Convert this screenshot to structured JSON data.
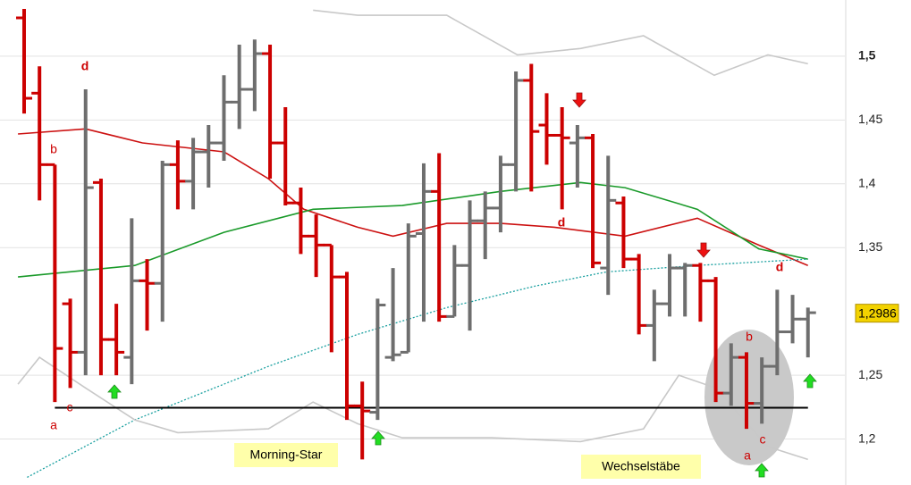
{
  "chart_data": {
    "type": "ohlc",
    "xlim": [
      -1.57,
      53.4
    ],
    "ylim": [
      1.164,
      1.544
    ],
    "yticks": [
      {
        "value": 1.2,
        "label": "1,2"
      },
      {
        "value": 1.25,
        "label": "1,25"
      },
      {
        "value": 1.35,
        "label": "1,35"
      },
      {
        "value": 1.4,
        "label": "1,4"
      },
      {
        "value": 1.45,
        "label": "1,45"
      },
      {
        "value": 1.5,
        "label": "1,5"
      }
    ],
    "grid": true,
    "up_color": "#6e6e6e",
    "down_color": "#cc0000",
    "open": [
      1.53,
      1.471,
      1.415,
      1.306,
      1.268,
      1.401,
      1.278,
      1.264,
      1.324,
      1.322,
      1.415,
      1.402,
      1.425,
      1.432,
      1.464,
      1.474,
      1.502,
      1.432,
      1.385,
      1.359,
      1.352,
      1.327,
      1.226,
      1.221,
      1.264,
      1.268,
      1.361,
      1.394,
      1.296,
      1.336,
      1.371,
      1.381,
      1.415,
      1.481,
      1.446,
      1.438,
      1.432,
      1.436,
      1.334,
      1.385,
      1.341,
      1.289,
      1.306,
      1.334,
      1.336,
      1.324,
      1.236,
      1.264,
      1.228,
      1.257,
      1.284,
      1.294
    ],
    "high": [
      1.537,
      1.492,
      1.415,
      1.31,
      1.474,
      1.404,
      1.306,
      1.373,
      1.341,
      1.418,
      1.434,
      1.436,
      1.446,
      1.485,
      1.509,
      1.513,
      1.509,
      1.46,
      1.397,
      1.376,
      1.352,
      1.331,
      1.245,
      1.31,
      1.334,
      1.369,
      1.416,
      1.424,
      1.352,
      1.387,
      1.394,
      1.422,
      1.488,
      1.494,
      1.471,
      1.46,
      1.446,
      1.439,
      1.422,
      1.39,
      1.345,
      1.317,
      1.345,
      1.338,
      1.338,
      1.327,
      1.275,
      1.268,
      1.264,
      1.317,
      1.313,
      1.303
    ],
    "low": [
      1.455,
      1.387,
      1.229,
      1.24,
      1.25,
      1.25,
      1.25,
      1.243,
      1.285,
      1.292,
      1.38,
      1.38,
      1.397,
      1.418,
      1.443,
      1.457,
      1.404,
      1.383,
      1.345,
      1.327,
      1.268,
      1.215,
      1.184,
      1.215,
      1.261,
      1.268,
      1.292,
      1.292,
      1.296,
      1.285,
      1.341,
      1.362,
      1.394,
      1.394,
      1.415,
      1.38,
      1.397,
      1.334,
      1.313,
      1.334,
      1.282,
      1.261,
      1.296,
      1.296,
      1.292,
      1.229,
      1.226,
      1.208,
      1.212,
      1.25,
      1.275,
      1.264
    ],
    "close": [
      1.467,
      1.415,
      1.271,
      1.268,
      1.397,
      1.278,
      1.268,
      1.324,
      1.322,
      1.415,
      1.402,
      1.425,
      1.432,
      1.464,
      1.474,
      1.502,
      1.432,
      1.385,
      1.359,
      1.352,
      1.327,
      1.226,
      1.222,
      1.305,
      1.266,
      1.359,
      1.394,
      1.296,
      1.336,
      1.371,
      1.381,
      1.415,
      1.481,
      1.441,
      1.438,
      1.436,
      1.436,
      1.338,
      1.387,
      1.341,
      1.289,
      1.306,
      1.334,
      1.336,
      1.324,
      1.236,
      1.264,
      1.228,
      1.257,
      1.284,
      1.294,
      1.299
    ],
    "lines": [
      {
        "color": "#cc1111",
        "dashed": false,
        "x": [
          -0.4,
          4,
          7.7,
          13,
          15.9,
          18.2,
          21.7,
          24,
          27.5,
          31,
          34.5,
          39.1,
          43.8,
          47.8,
          51
        ],
        "values": [
          1.439,
          1.443,
          1.432,
          1.425,
          1.404,
          1.38,
          1.366,
          1.359,
          1.369,
          1.369,
          1.366,
          1.359,
          1.373,
          1.352,
          1.336
        ]
      },
      {
        "color": "#1a9a2a",
        "dashed": false,
        "x": [
          -0.4,
          7.2,
          13,
          18.8,
          24.6,
          31,
          36.2,
          39.1,
          43.8,
          47.8,
          51
        ],
        "values": [
          1.327,
          1.336,
          1.362,
          1.38,
          1.383,
          1.394,
          1.401,
          1.397,
          1.38,
          1.349,
          1.341
        ]
      },
      {
        "color": "#1aa0a0",
        "dashed": true,
        "x": [
          0.2,
          7.2,
          15.9,
          21.7,
          27.5,
          33.3,
          37.9,
          43.8,
          51
        ],
        "values": [
          1.17,
          1.215,
          1.257,
          1.282,
          1.303,
          1.32,
          1.331,
          1.336,
          1.341
        ]
      },
      {
        "color": "#c8c8c8",
        "dashed": false,
        "x": [
          18.8,
          21.7,
          27.5,
          32.1,
          36.2,
          40.3,
          44.9,
          48.4,
          51
        ],
        "values": [
          1.536,
          1.532,
          1.532,
          1.501,
          1.506,
          1.516,
          1.485,
          1.501,
          1.494
        ]
      },
      {
        "color": "#c8c8c8",
        "dashed": false,
        "x": [
          -0.4,
          1.0,
          4,
          7.2,
          10,
          15.9,
          18.8,
          21.7,
          24.6,
          30.4,
          36.2,
          40.3,
          42.6,
          45,
          48.4,
          51
        ],
        "values": [
          1.243,
          1.264,
          1.24,
          1.215,
          1.205,
          1.208,
          1.229,
          1.212,
          1.201,
          1.201,
          1.198,
          1.208,
          1.25,
          1.24,
          1.194,
          1.184
        ]
      }
    ],
    "support_level": 1.2245,
    "support_range": [
      2,
      51
    ],
    "last_value": {
      "value": 1.2986,
      "label": "1,2986"
    },
    "annotations": [
      "d",
      "b",
      "a",
      "c",
      "d",
      "d",
      "b",
      "a",
      "c",
      "Morning-Star",
      "Wechselstäbe"
    ]
  }
}
